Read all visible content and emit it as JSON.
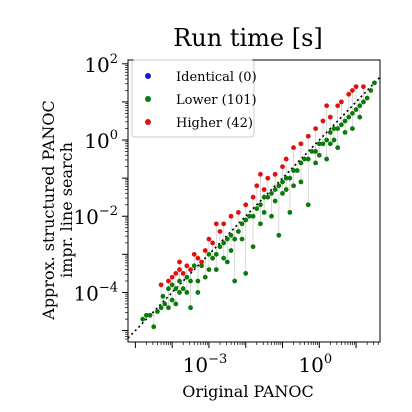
{
  "chart_data": {
    "type": "scatter",
    "title": "Run time [s]",
    "xlabel_main": "Original",
    "xlabel_sc": "PANOC",
    "ylabel_line1_main": "Approx. structured",
    "ylabel_line1_sc": "PANOC",
    "ylabel_line2": "impr. line search",
    "x_scale": "log",
    "y_scale": "log",
    "xlim_log10": [
      -5.2,
      1.65
    ],
    "ylim_log10": [
      -5.3,
      2.1
    ],
    "x_ticks": [
      {
        "base": "10",
        "exp": "−3",
        "log": -3
      },
      {
        "base": "10",
        "exp": "0",
        "log": 0
      }
    ],
    "y_ticks": [
      {
        "base": "10",
        "exp": "−4",
        "log": -4
      },
      {
        "base": "10",
        "exp": "−2",
        "log": -2
      },
      {
        "base": "10",
        "exp": "0",
        "log": 0
      },
      {
        "base": "10",
        "exp": "2",
        "log": 2
      }
    ],
    "grid": false,
    "legend_position": "top-left",
    "diagonal": "dotted black y = x",
    "series": [
      {
        "name": "Identical (0)",
        "color": "#1020d0",
        "points": []
      },
      {
        "name": "Lower (101)",
        "color": "#0a7a0a",
        "points": [
          [
            -4.8,
            -4.7
          ],
          [
            -4.7,
            -4.6
          ],
          [
            -4.6,
            -4.6
          ],
          [
            -4.5,
            -4.9
          ],
          [
            -4.4,
            -4.5
          ],
          [
            -4.3,
            -4.4
          ],
          [
            -4.25,
            -4.1
          ],
          [
            -4.2,
            -4.3
          ],
          [
            -4.1,
            -4.4
          ],
          [
            -4.1,
            -3.9
          ],
          [
            -4.0,
            -3.8
          ],
          [
            -4.0,
            -4.2
          ],
          [
            -3.9,
            -3.9
          ],
          [
            -3.9,
            -4.3
          ],
          [
            -3.8,
            -4.0
          ],
          [
            -3.8,
            -3.7
          ],
          [
            -3.7,
            -3.9
          ],
          [
            -3.6,
            -4.0
          ],
          [
            -3.6,
            -3.6
          ],
          [
            -3.5,
            -3.7
          ],
          [
            -3.5,
            -4.4
          ],
          [
            -3.4,
            -3.3
          ],
          [
            -3.3,
            -3.7
          ],
          [
            -3.3,
            -4.0
          ],
          [
            -3.2,
            -3.3
          ],
          [
            -3.1,
            -3.6
          ],
          [
            -3.0,
            -3.0
          ],
          [
            -2.9,
            -3.1
          ],
          [
            -2.8,
            -3.0
          ],
          [
            -2.8,
            -3.4
          ],
          [
            -2.7,
            -2.8
          ],
          [
            -2.6,
            -3.1
          ],
          [
            -2.6,
            -2.7
          ],
          [
            -2.5,
            -2.6
          ],
          [
            -2.5,
            -3.2
          ],
          [
            -2.4,
            -2.5
          ],
          [
            -2.3,
            -2.6
          ],
          [
            -2.3,
            -3.7
          ],
          [
            -2.2,
            -2.4
          ],
          [
            -2.1,
            -2.2
          ],
          [
            -2.1,
            -2.6
          ],
          [
            -2.0,
            -2.1
          ],
          [
            -2.0,
            -3.5
          ],
          [
            -1.9,
            -2.0
          ],
          [
            -1.8,
            -2.0
          ],
          [
            -1.8,
            -2.8
          ],
          [
            -1.7,
            -1.8
          ],
          [
            -1.6,
            -1.7
          ],
          [
            -1.6,
            -2.2
          ],
          [
            -1.5,
            -1.5
          ],
          [
            -1.5,
            -1.9
          ],
          [
            -1.4,
            -1.5
          ],
          [
            -1.3,
            -1.4
          ],
          [
            -1.3,
            -2.0
          ],
          [
            -1.2,
            -1.3
          ],
          [
            -1.1,
            -1.2
          ],
          [
            -1.1,
            -2.5
          ],
          [
            -1.0,
            -1.1
          ],
          [
            -1.0,
            -1.4
          ],
          [
            -0.9,
            -1.0
          ],
          [
            -0.8,
            -1.0
          ],
          [
            -0.8,
            -1.9
          ],
          [
            -0.7,
            -0.8
          ],
          [
            -0.7,
            -1.2
          ],
          [
            -0.6,
            -0.8
          ],
          [
            -0.5,
            -0.6
          ],
          [
            -0.5,
            -1.1
          ],
          [
            -0.4,
            -0.5
          ],
          [
            -0.3,
            -0.5
          ],
          [
            -0.3,
            -1.7
          ],
          [
            -0.2,
            -0.3
          ],
          [
            -0.1,
            -0.3
          ],
          [
            -0.1,
            -0.6
          ],
          [
            0.0,
            -0.1
          ],
          [
            0.0,
            -0.4
          ],
          [
            0.1,
            -0.1
          ],
          [
            0.2,
            0.0
          ],
          [
            0.2,
            -0.5
          ],
          [
            0.3,
            0.2
          ],
          [
            0.3,
            -0.1
          ],
          [
            0.4,
            0.3
          ],
          [
            0.5,
            0.3
          ],
          [
            0.5,
            -0.2
          ],
          [
            0.6,
            0.4
          ],
          [
            0.7,
            0.5
          ],
          [
            0.7,
            0.2
          ],
          [
            0.8,
            0.6
          ],
          [
            0.9,
            0.7
          ],
          [
            0.9,
            0.3
          ],
          [
            1.0,
            0.8
          ],
          [
            1.1,
            0.9
          ],
          [
            1.1,
            0.6
          ],
          [
            1.2,
            1.0
          ],
          [
            1.3,
            1.1
          ],
          [
            1.4,
            1.3
          ],
          [
            1.5,
            1.5
          ],
          [
            -3.0,
            -3.4
          ],
          [
            -2.4,
            -2.9
          ],
          [
            -1.2,
            -1.6
          ],
          [
            0.4,
            0.0
          ],
          [
            -0.9,
            -1.3
          ]
        ]
      },
      {
        "name": "Higher (42)",
        "color": "#e01010",
        "points": [
          [
            -4.3,
            -3.8
          ],
          [
            -4.1,
            -3.7
          ],
          [
            -4.0,
            -3.6
          ],
          [
            -3.9,
            -3.5
          ],
          [
            -3.8,
            -3.4
          ],
          [
            -3.8,
            -3.2
          ],
          [
            -3.7,
            -3.5
          ],
          [
            -3.6,
            -3.3
          ],
          [
            -3.5,
            -3.4
          ],
          [
            -3.4,
            -3.0
          ],
          [
            -3.3,
            -3.1
          ],
          [
            -3.2,
            -3.2
          ],
          [
            -3.1,
            -2.9
          ],
          [
            -3.0,
            -2.6
          ],
          [
            -2.9,
            -2.7
          ],
          [
            -2.7,
            -2.4
          ],
          [
            -2.6,
            -2.2
          ],
          [
            -2.4,
            -2.0
          ],
          [
            -2.2,
            -1.9
          ],
          [
            -2.0,
            -1.7
          ],
          [
            -1.8,
            -1.5
          ],
          [
            -1.7,
            -1.2
          ],
          [
            -1.5,
            -1.3
          ],
          [
            -1.4,
            -1.0
          ],
          [
            -1.2,
            -0.9
          ],
          [
            -1.0,
            -0.7
          ],
          [
            -0.9,
            -0.5
          ],
          [
            -0.7,
            -0.2
          ],
          [
            -0.5,
            -0.1
          ],
          [
            -0.3,
            0.1
          ],
          [
            -0.1,
            0.3
          ],
          [
            0.1,
            0.5
          ],
          [
            0.3,
            0.6
          ],
          [
            0.5,
            0.9
          ],
          [
            0.6,
            1.0
          ],
          [
            0.8,
            1.2
          ],
          [
            0.9,
            1.3
          ],
          [
            1.0,
            1.4
          ],
          [
            1.2,
            1.4
          ],
          [
            -2.8,
            -2.2
          ],
          [
            -1.6,
            -0.9
          ],
          [
            0.2,
            0.9
          ]
        ]
      }
    ]
  }
}
